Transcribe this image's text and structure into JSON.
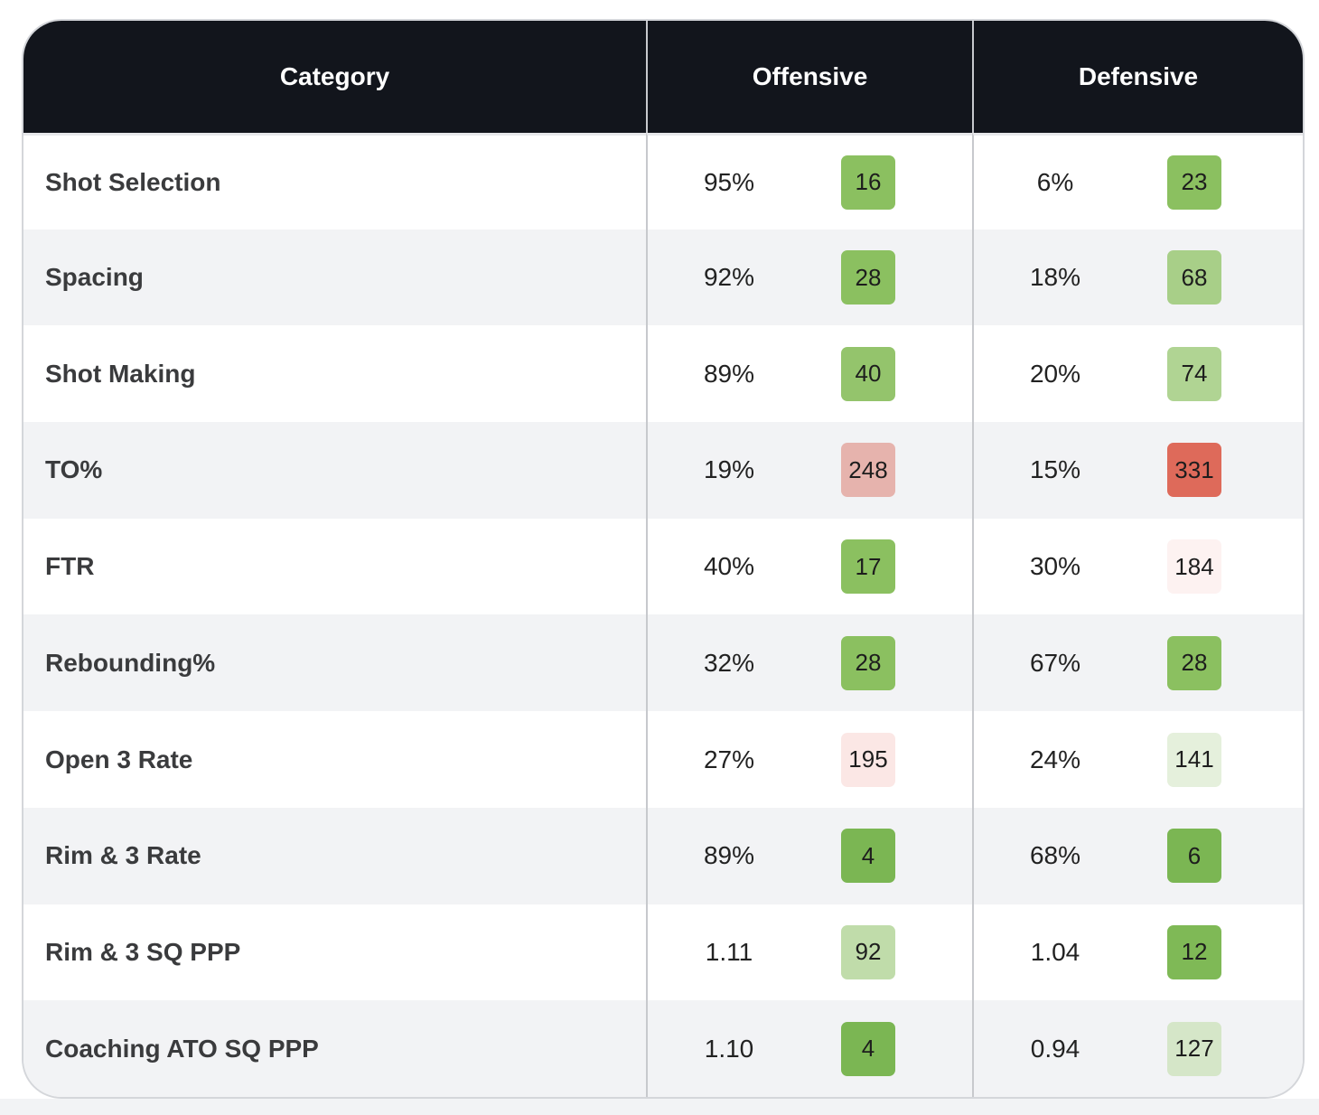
{
  "headers": {
    "category": "Category",
    "offensive": "Offensive",
    "defensive": "Defensive"
  },
  "rows": [
    {
      "category": "Shot Selection",
      "off_value": "95%",
      "off_rank": "16",
      "off_color": "#8bc060",
      "def_value": "6%",
      "def_rank": "23",
      "def_color": "#8bc060"
    },
    {
      "category": "Spacing",
      "off_value": "92%",
      "off_rank": "28",
      "off_color": "#8bc060",
      "def_value": "18%",
      "def_rank": "68",
      "def_color": "#a8cf88"
    },
    {
      "category": "Shot Making",
      "off_value": "89%",
      "off_rank": "40",
      "off_color": "#94c46c",
      "def_value": "20%",
      "def_rank": "74",
      "def_color": "#b0d493"
    },
    {
      "category": "TO%",
      "off_value": "19%",
      "off_rank": "248",
      "off_color": "#e6b3ad",
      "def_value": "15%",
      "def_rank": "331",
      "def_color": "#de6a5a"
    },
    {
      "category": "FTR",
      "off_value": "40%",
      "off_rank": "17",
      "off_color": "#8bc060",
      "def_value": "30%",
      "def_rank": "184",
      "def_color": "#fdf2f1"
    },
    {
      "category": "Rebounding%",
      "off_value": "32%",
      "off_rank": "28",
      "off_color": "#8bc060",
      "def_value": "67%",
      "def_rank": "28",
      "def_color": "#8bc060"
    },
    {
      "category": "Open 3 Rate",
      "off_value": "27%",
      "off_rank": "195",
      "off_color": "#fbe7e5",
      "def_value": "24%",
      "def_rank": "141",
      "def_color": "#e5f0dc"
    },
    {
      "category": "Rim & 3 Rate",
      "off_value": "89%",
      "off_rank": "4",
      "off_color": "#7bb653",
      "def_value": "68%",
      "def_rank": "6",
      "def_color": "#7bb653"
    },
    {
      "category": "Rim & 3 SQ PPP",
      "off_value": "1.11",
      "off_rank": "92",
      "off_color": "#c0dcaa",
      "def_value": "1.04",
      "def_rank": "12",
      "def_color": "#7fb956"
    },
    {
      "category": "Coaching ATO SQ PPP",
      "off_value": "1.10",
      "off_rank": "4",
      "off_color": "#7bb653",
      "def_value": "0.94",
      "def_rank": "127",
      "def_color": "#d5e6c8"
    }
  ]
}
